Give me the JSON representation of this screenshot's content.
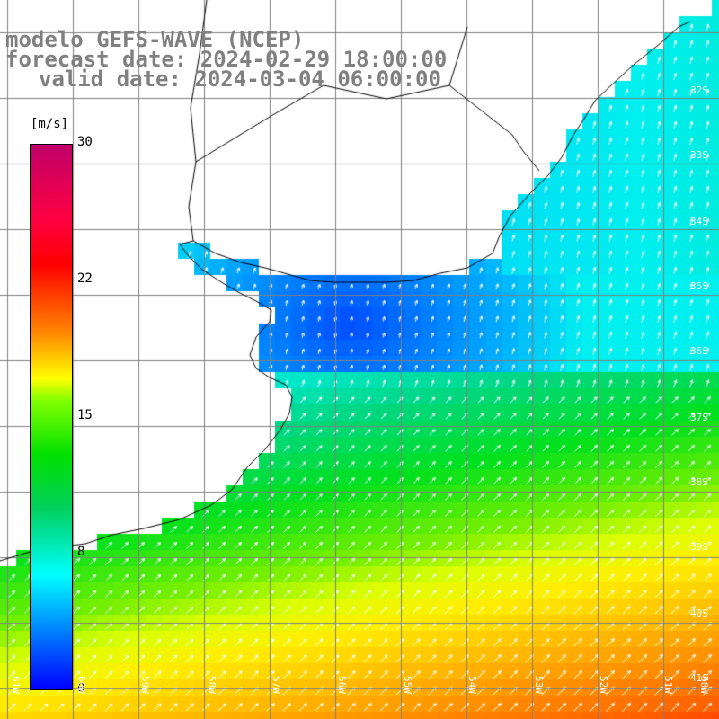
{
  "header": {
    "title": "modelo GEFS-WAVE (NCEP)",
    "forecast": "forecast date: 2024-02-29 18:00:00",
    "valid": "valid date: 2024-03-04 06:00:00"
  },
  "colorbar": {
    "unit": "[m/s]",
    "ticks": [
      "30",
      "22",
      "15",
      "8",
      "0"
    ]
  },
  "grid": {
    "lat_labels": [
      "32S",
      "33S",
      "34S",
      "35S",
      "36S",
      "37S",
      "38S",
      "39S",
      "40S",
      "41S"
    ],
    "lon_labels": [
      "61W",
      "60W",
      "59W",
      "58W",
      "57W",
      "56W",
      "55W",
      "54W",
      "53W",
      "52W",
      "51W",
      "50W"
    ]
  },
  "colors": {
    "land": "#ffffff",
    "coast": "#000000",
    "grid": "#808080",
    "arrows": "#ffffff"
  }
}
